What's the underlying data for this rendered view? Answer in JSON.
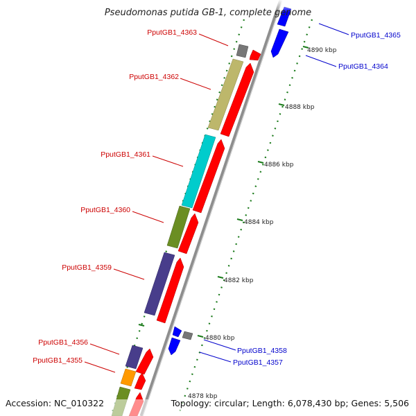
{
  "title": "Pseudomonas putida GB-1, complete genome",
  "accession": "Accession: NC_010322",
  "topology": "Topology: circular; Length: 6,078,430 bp; Genes: 5,506",
  "ticks": {
    "label_4890": "4890 kbp",
    "label_4888": "4888 kbp",
    "label_4886": "4886 kbp",
    "label_4884": "4884 kbp",
    "label_4882": "4882 kbp",
    "label_4880": "4880 kbp",
    "label_4878": "4878 kbp"
  },
  "genes": {
    "g4365": "PputGB1_4365",
    "g4364": "PputGB1_4364",
    "g4363": "PputGB1_4363",
    "g4362": "PputGB1_4362",
    "g4361": "PputGB1_4361",
    "g4360": "PputGB1_4360",
    "g4359": "PputGB1_4359",
    "g4358": "PputGB1_4358",
    "g4357": "PputGB1_4357",
    "g4356": "PputGB1_4356",
    "g4355": "PputGB1_4355"
  },
  "colors": {
    "forward_strand": "#ff0000",
    "reverse_strand": "#0000ff",
    "backbone": "#999999",
    "tick": "#1a7a1a",
    "cog_khaki": "#bdb76b",
    "cog_cyan": "#00cccc",
    "cog_olive": "#6b8e23",
    "cog_indigo": "#483d8b",
    "cog_orange": "#ff9900",
    "cog_gray": "#777777"
  }
}
